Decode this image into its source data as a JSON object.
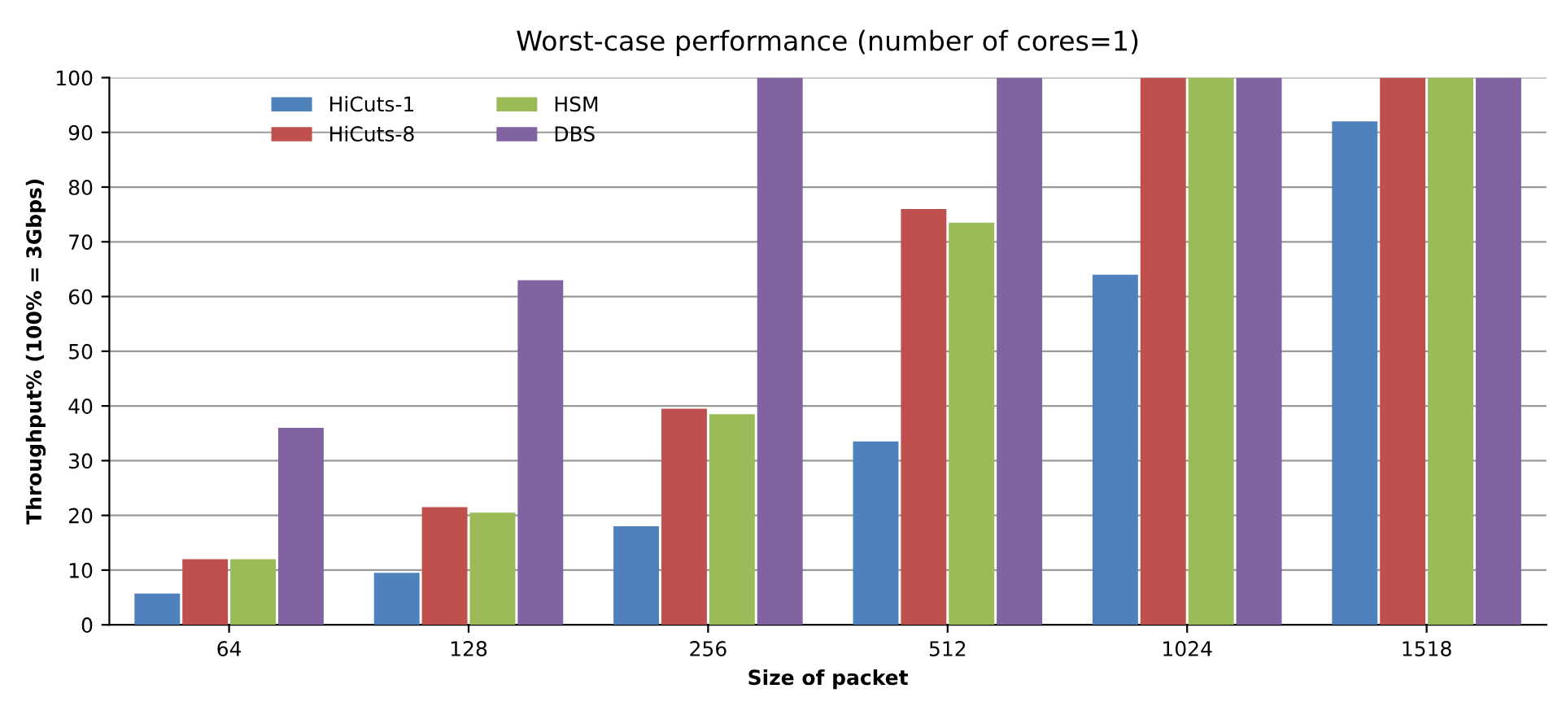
{
  "chart_data": {
    "type": "bar",
    "title": "Worst-case performance (number of cores=1)",
    "xlabel": "Size of packet",
    "ylabel": "Throughput% (100% = 3Gbps)",
    "categories": [
      "64",
      "128",
      "256",
      "512",
      "1024",
      "1518"
    ],
    "series": [
      {
        "name": "HiCuts-1",
        "color": "#4f81bd",
        "values": [
          5.7,
          9.5,
          18,
          33.5,
          64,
          92
        ]
      },
      {
        "name": "HiCuts-8",
        "color": "#c0504d",
        "values": [
          12,
          21.5,
          39.5,
          76,
          100,
          100
        ]
      },
      {
        "name": "HSM",
        "color": "#9bbb59",
        "values": [
          12,
          20.5,
          38.5,
          73.5,
          100,
          100
        ]
      },
      {
        "name": "DBS",
        "color": "#8064a2",
        "values": [
          36,
          63,
          100,
          100,
          100,
          100
        ]
      }
    ],
    "ylim": [
      0,
      100
    ],
    "yticks": [
      0,
      10,
      20,
      30,
      40,
      50,
      60,
      70,
      80,
      90,
      100
    ],
    "grid": "y",
    "legend": "top left"
  }
}
